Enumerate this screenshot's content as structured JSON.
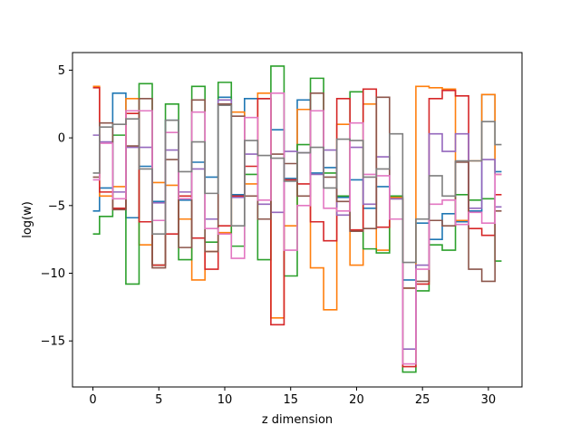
{
  "chart_data": {
    "type": "line",
    "step": "mid",
    "xlabel": "z dimension",
    "ylabel": "log(w)",
    "xlim": [
      -1.55,
      32.55
    ],
    "ylim": [
      -18.4,
      6.3
    ],
    "xticks": [
      0,
      5,
      10,
      15,
      20,
      25,
      30
    ],
    "yticks": [
      -15,
      -10,
      -5,
      0,
      5
    ],
    "x": [
      0,
      1,
      2,
      3,
      4,
      5,
      6,
      7,
      8,
      9,
      10,
      11,
      12,
      13,
      14,
      15,
      16,
      17,
      18,
      19,
      20,
      21,
      22,
      23,
      24,
      25,
      26,
      27,
      28,
      29,
      30,
      31
    ],
    "series": [
      {
        "color": "#1f77b4",
        "values": [
          -5.4,
          -3.7,
          3.3,
          -5.9,
          -2.1,
          -4.7,
          1.3,
          -4.6,
          -1.8,
          -2.9,
          3.0,
          -4.2,
          2.9,
          2.9,
          0.6,
          -3.0,
          2.8,
          -2.6,
          -2.2,
          -4.4,
          -3.1,
          -5.2,
          -3.6,
          -4.5,
          -10.5,
          -6.3,
          -7.5,
          -5.6,
          -6.2,
          -5.4,
          3.2,
          -2.5
        ]
      },
      {
        "color": "#ff7f0e",
        "values": [
          3.8,
          -4.3,
          -3.6,
          2.9,
          -7.9,
          -3.3,
          -3.5,
          -6.0,
          -10.5,
          -8.4,
          -7.0,
          1.9,
          -3.4,
          3.3,
          -13.3,
          -6.5,
          2.1,
          -9.6,
          -12.7,
          1.0,
          -9.4,
          2.5,
          -8.3,
          -4.4,
          -11.1,
          3.8,
          3.7,
          3.6,
          -6.1,
          -1.7,
          3.2,
          -2.7
        ]
      },
      {
        "color": "#2ca02c",
        "values": [
          -7.1,
          -5.8,
          0.2,
          -10.8,
          4.0,
          -9.4,
          2.5,
          -9.0,
          3.8,
          -7.7,
          4.1,
          -8.0,
          -2.7,
          -9.0,
          5.3,
          -10.2,
          -0.5,
          4.4,
          -2.6,
          -4.3,
          3.4,
          -8.2,
          -8.5,
          -4.3,
          -17.3,
          -11.3,
          -7.9,
          -8.3,
          -4.2,
          -4.6,
          -4.5,
          -9.1
        ]
      },
      {
        "color": "#d62728",
        "values": [
          3.7,
          -4.0,
          -5.2,
          1.8,
          -6.2,
          -9.4,
          -7.1,
          -4.3,
          -7.4,
          -9.7,
          -6.5,
          -4.3,
          -2.1,
          2.9,
          -13.8,
          -3.1,
          -3.4,
          -6.2,
          -7.6,
          2.9,
          -6.8,
          3.6,
          -6.6,
          -4.5,
          -16.9,
          -10.8,
          2.9,
          3.5,
          3.1,
          -6.7,
          -7.2,
          -4.2
        ]
      },
      {
        "color": "#9467bd",
        "values": [
          0.2,
          -0.3,
          -4.0,
          -0.7,
          -0.7,
          -4.8,
          -0.9,
          -4.0,
          -2.3,
          -6.0,
          2.8,
          -4.4,
          -1.2,
          -4.9,
          -5.5,
          -1.0,
          -1.1,
          -2.7,
          -0.9,
          -5.7,
          -0.7,
          -4.9,
          -1.4,
          -4.5,
          -15.6,
          -9.4,
          0.3,
          -1.0,
          0.3,
          -5.2,
          -1.6,
          -5.1
        ]
      },
      {
        "color": "#8c564b",
        "values": [
          -2.9,
          1.1,
          -5.3,
          -0.6,
          2.9,
          -9.6,
          -1.6,
          -8.1,
          2.8,
          -8.4,
          2.5,
          1.6,
          -4.3,
          -6.0,
          -1.2,
          -1.9,
          -4.3,
          3.3,
          -2.9,
          -4.7,
          -6.9,
          -6.7,
          3.0,
          -6.0,
          -11.1,
          -10.6,
          -6.1,
          -6.5,
          -1.8,
          -9.7,
          -10.6,
          -5.4
        ]
      },
      {
        "color": "#e377c2",
        "values": [
          -3.1,
          -0.4,
          -4.5,
          2.0,
          2.0,
          -6.1,
          0.4,
          -4.5,
          1.9,
          -6.7,
          -7.1,
          -8.9,
          1.5,
          -4.6,
          3.3,
          -8.3,
          -5.0,
          2.0,
          -5.2,
          -5.4,
          1.1,
          -2.7,
          -2.8,
          -6.0,
          -16.7,
          -9.7,
          -4.9,
          -4.6,
          -6.4,
          -5.5,
          -6.3,
          -2.7
        ]
      },
      {
        "color": "#7f7f7f",
        "values": [
          -2.6,
          0.8,
          1.0,
          1.4,
          -2.3,
          -7.1,
          1.3,
          -2.5,
          -0.3,
          -4.1,
          2.4,
          -6.5,
          -0.2,
          -1.3,
          -1.5,
          -3.2,
          -1.1,
          -0.7,
          -3.7,
          -0.1,
          -0.2,
          -2.9,
          -2.3,
          0.3,
          -9.2,
          -6.0,
          -2.8,
          -4.3,
          -1.7,
          -1.7,
          1.2,
          -0.5
        ]
      }
    ]
  }
}
